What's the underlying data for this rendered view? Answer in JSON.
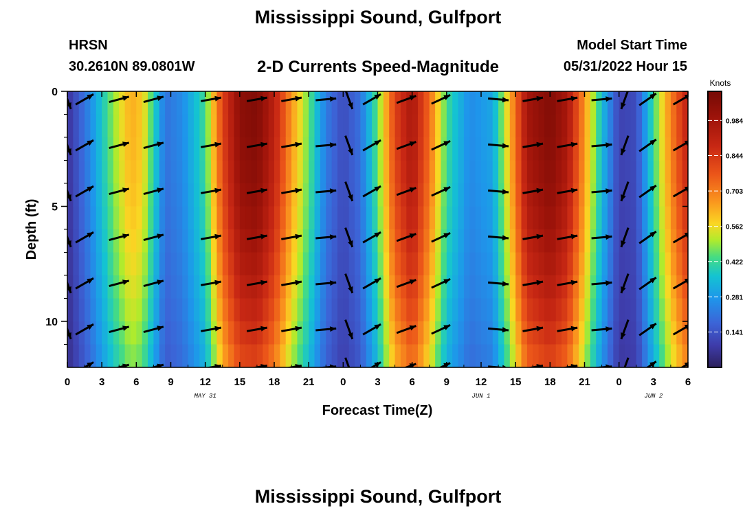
{
  "header": {
    "title": "Mississippi Sound, Gulfport",
    "station": "HRSN",
    "coordinates": "30.2610N  89.0801W",
    "model_start_label": "Model Start Time",
    "model_start_value": "05/31/2022 Hour 15",
    "bottom_title": "Mississippi Sound, Gulfport"
  },
  "chart_data": {
    "type": "heatmap",
    "title": "2-D Currents Speed-Magnitude",
    "xlabel": "Forecast Time(Z)",
    "ylabel": "Depth (ft)",
    "x_unit": "hours since 05/31/2022 00Z",
    "xlim": [
      0,
      54
    ],
    "ylim": [
      0,
      12
    ],
    "y_inverted": true,
    "x_tick_values": [
      0,
      3,
      6,
      9,
      12,
      15,
      18,
      21,
      24,
      27,
      30,
      33,
      36,
      39,
      42,
      45,
      48,
      51,
      54
    ],
    "x_tick_labels": [
      "0",
      "3",
      "6",
      "9",
      "12",
      "15",
      "18",
      "21",
      "0",
      "3",
      "6",
      "9",
      "12",
      "15",
      "18",
      "21",
      "0",
      "3",
      "6"
    ],
    "y_tick_values": [
      0,
      5,
      10
    ],
    "y_tick_labels": [
      "0",
      "5",
      "10"
    ],
    "date_labels": [
      {
        "x": 12,
        "text": "MAY 31"
      },
      {
        "x": 36,
        "text": "JUN 1"
      },
      {
        "x": 51,
        "text": "JUN 2"
      }
    ],
    "colorbar": {
      "title": "Knots",
      "min": 0.0,
      "max": 1.1,
      "tick_values": [
        0.141,
        0.281,
        0.422,
        0.562,
        0.703,
        0.844,
        0.984
      ],
      "tick_labels": [
        "0.141",
        "0.281",
        "0.422",
        "0.562",
        "0.703",
        "0.844",
        "0.984"
      ]
    },
    "speed_profile": {
      "hours": [
        0,
        2,
        4,
        5.5,
        6.5,
        7.5,
        8.5,
        10,
        12,
        13.5,
        15,
        16.5,
        18,
        19.5,
        21,
        22.5,
        24,
        25.5,
        27,
        28.5,
        30,
        31.5,
        33,
        35,
        37,
        38.5,
        40,
        42,
        43.5,
        45,
        46.5,
        48,
        49.5,
        51,
        52.5,
        54
      ],
      "speed_knots": [
        0.06,
        0.25,
        0.48,
        0.62,
        0.58,
        0.4,
        0.2,
        0.25,
        0.42,
        0.8,
        1.02,
        1.05,
        0.9,
        0.65,
        0.45,
        0.22,
        0.12,
        0.2,
        0.45,
        0.8,
        0.95,
        0.72,
        0.42,
        0.25,
        0.3,
        0.6,
        0.96,
        1.05,
        0.95,
        0.65,
        0.35,
        0.1,
        0.12,
        0.42,
        0.68,
        0.9
      ]
    },
    "arrow_rows_depth_ft": [
      0.35,
      2.35,
      4.35,
      6.35,
      8.35,
      10.35,
      12.0
    ],
    "arrows": [
      {
        "x": 0,
        "dir": 160
      },
      {
        "x": 1.5,
        "dir": 60
      },
      {
        "x": 4.5,
        "dir": 75
      },
      {
        "x": 7.5,
        "dir": 75
      },
      {
        "x": 12.5,
        "dir": 80
      },
      {
        "x": 16.5,
        "dir": 80
      },
      {
        "x": 19.5,
        "dir": 80
      },
      {
        "x": 22.5,
        "dir": 85
      },
      {
        "x": 24.5,
        "dir": 160
      },
      {
        "x": 26.5,
        "dir": 60
      },
      {
        "x": 29.5,
        "dir": 70
      },
      {
        "x": 32.5,
        "dir": 65
      },
      {
        "x": 37.5,
        "dir": 95
      },
      {
        "x": 40.5,
        "dir": 80
      },
      {
        "x": 43.5,
        "dir": 80
      },
      {
        "x": 46.5,
        "dir": 85
      },
      {
        "x": 48.5,
        "dir": 200
      },
      {
        "x": 50.5,
        "dir": 55
      },
      {
        "x": 53.5,
        "dir": 60
      }
    ]
  }
}
